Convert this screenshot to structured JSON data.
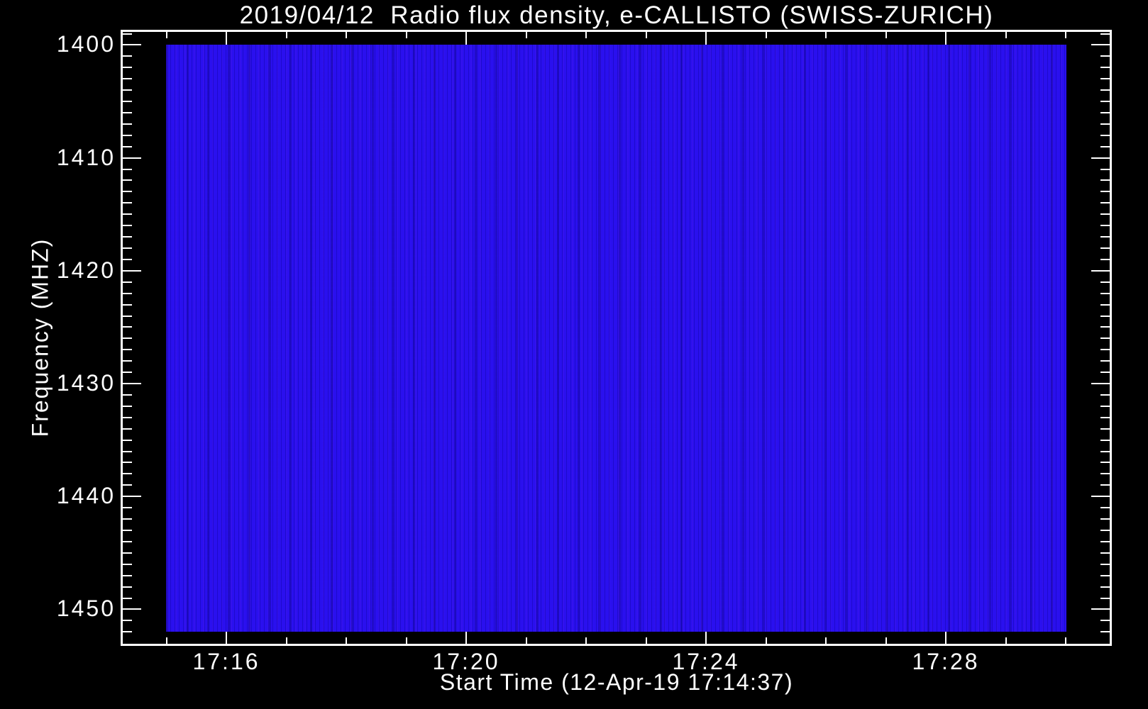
{
  "window": {
    "background_color": "#000000",
    "text_color": "#FFFFFF"
  },
  "chart_data": {
    "type": "heatmap",
    "subtype": "radio-spectrogram",
    "title": "2019/04/12  Radio flux density, e-CALLISTO (SWISS-ZURICH)",
    "xlabel": "Start Time (12-Apr-19 17:14:37)",
    "ylabel": "Frequency (MHZ)",
    "date": "2019/04/12",
    "start_time": "17:14:37",
    "instrument": "e-CALLISTO",
    "station": "SWISS-ZURICH",
    "x_tick_labels": [
      "17:16",
      "17:20",
      "17:24",
      "17:28"
    ],
    "x_major_tick_interval_min": 4,
    "x_minor_tick_interval_min": 1,
    "x_extent": [
      "17:15",
      "17:30"
    ],
    "y_tick_labels": [
      "1400",
      "1410",
      "1420",
      "1430",
      "1440",
      "1450"
    ],
    "y_major_tick_interval_mhz": 10,
    "y_minor_tick_interval_mhz": 1,
    "y_extent_mhz": [
      1400,
      1452
    ],
    "y_axis_inverted": true,
    "values_summary": "Uniform quiet background flux density over the whole time-frequency plane; no burst features, rendered as saturated blue with faint vertical noise striations",
    "colors": {
      "background": "#000000",
      "axes_and_text": "#FFFFFF",
      "flux_background_blue": "#2A10EE",
      "flux_stripe_dark": "#1C06D0"
    },
    "grid": false,
    "legend": false
  }
}
